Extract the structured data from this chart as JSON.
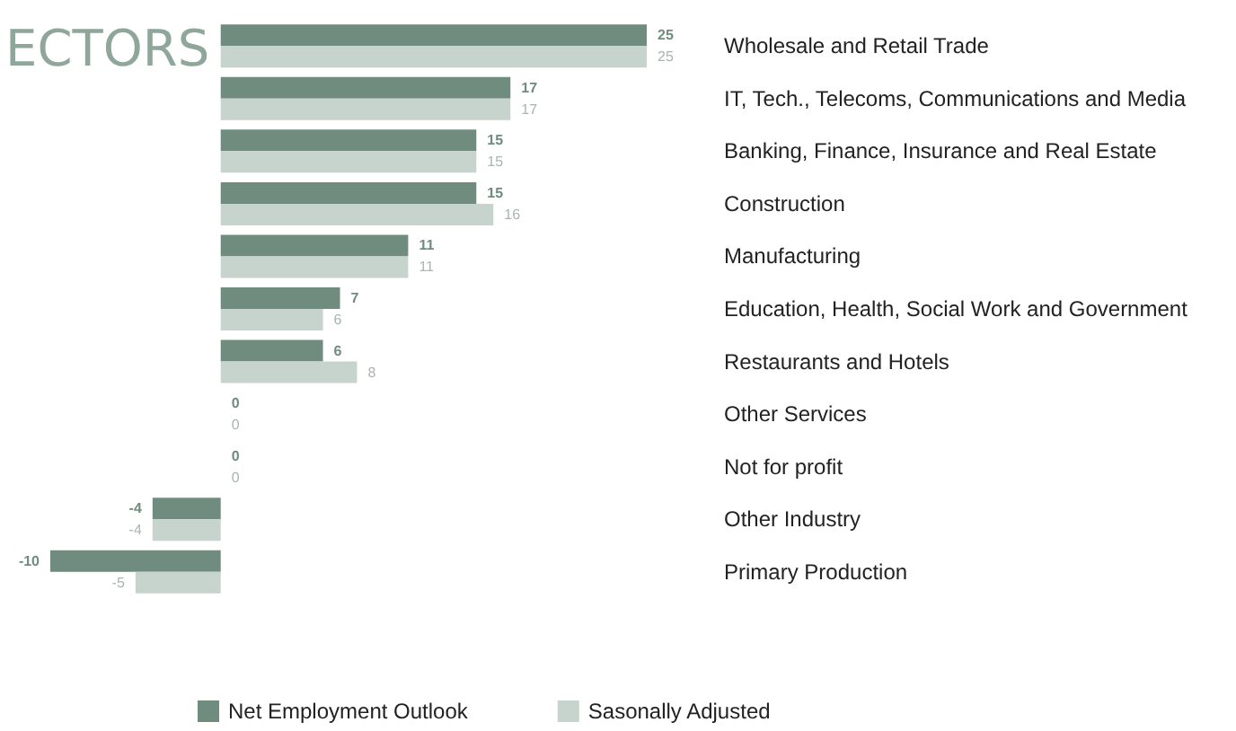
{
  "chart_data": {
    "type": "bar",
    "orientation": "horizontal",
    "title": "ECTORS",
    "data_labels": true,
    "legend": "bottom",
    "categories": [
      "Wholesale and Retail Trade",
      "IT, Tech., Telecoms, Communications and Media",
      "Banking, Finance, Insurance and Real Estate",
      "Construction",
      "Manufacturing",
      "Education, Health, Social Work and Government",
      "Restaurants and Hotels",
      "Other Services",
      "Not for profit",
      "Other Industry",
      "Primary Production"
    ],
    "series": [
      {
        "name": "Net Employment Outlook",
        "color": "#6f8c7e",
        "values": [
          25,
          17,
          15,
          15,
          11,
          7,
          6,
          0,
          0,
          -4,
          -10
        ]
      },
      {
        "name": "Sasonally Adjusted",
        "color": "#c6d4cd",
        "values": [
          25,
          17,
          15,
          16,
          11,
          6,
          8,
          0,
          0,
          -4,
          -5
        ]
      }
    ]
  }
}
